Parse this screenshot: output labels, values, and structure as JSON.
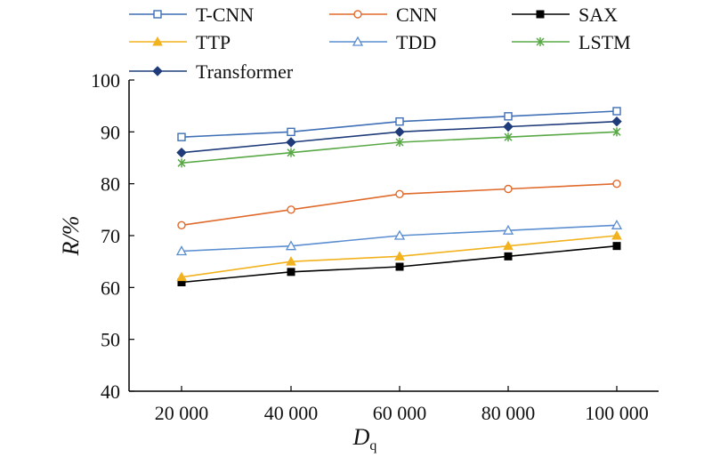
{
  "chart_data": {
    "type": "line",
    "x": [
      20000,
      40000,
      60000,
      80000,
      100000
    ],
    "x_tick_labels": [
      "20 000",
      "40 000",
      "60 000",
      "80 000",
      "100 000"
    ],
    "y_ticks": [
      40,
      50,
      60,
      70,
      80,
      90,
      100
    ],
    "ylim": [
      40,
      100
    ],
    "ylabel": "R/%",
    "xlabel_main": "D",
    "xlabel_sub": "q",
    "grid": false,
    "legend_position": "top",
    "series": [
      {
        "name": "T-CNN",
        "color": "#3F6FB5",
        "marker": "square-open",
        "values": [
          89,
          90,
          92,
          93,
          94
        ]
      },
      {
        "name": "CNN",
        "color": "#E06A2C",
        "marker": "circle-open",
        "values": [
          72,
          75,
          78,
          79,
          80
        ]
      },
      {
        "name": "SAX",
        "color": "#000000",
        "marker": "square-filled",
        "values": [
          61,
          63,
          64,
          66,
          68
        ]
      },
      {
        "name": "TTP",
        "color": "#F2B21E",
        "marker": "triangle-filled",
        "values": [
          62,
          65,
          66,
          68,
          70
        ]
      },
      {
        "name": "TDD",
        "color": "#5B8ED0",
        "marker": "triangle-open",
        "values": [
          67,
          68,
          70,
          71,
          72
        ]
      },
      {
        "name": "LSTM",
        "color": "#58A845",
        "marker": "star",
        "values": [
          84,
          86,
          88,
          89,
          90
        ]
      },
      {
        "name": "Transformer",
        "color": "#1F3B7A",
        "marker": "diamond-filled",
        "values": [
          86,
          88,
          90,
          91,
          92
        ]
      }
    ]
  }
}
